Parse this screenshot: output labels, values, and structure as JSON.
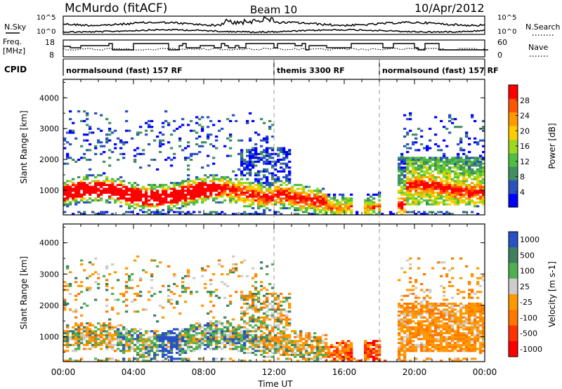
{
  "header": {
    "title": "McMurdo (fitACF)",
    "beam": "Beam 10",
    "date": "10/Apr/2012"
  },
  "top_panels": {
    "nsky_label": "N.Sky",
    "nsearch_label": "N.Search",
    "noise_ticks_left": [
      "10^5",
      "10^0"
    ],
    "noise_ticks_right": [
      "10^5",
      "10^0"
    ],
    "freq_label_line1": "Freq.",
    "freq_label_line2": "[MHz]",
    "freq_ticks": [
      "18",
      "8"
    ],
    "nave_label": "Nave",
    "nave_ticks": [
      "60",
      "0"
    ],
    "cpid_label": "CPID"
  },
  "cpid_segments": [
    {
      "label": "normalsound (fast) 157 RF",
      "start_hour": 0,
      "end_hour": 12
    },
    {
      "label": "themis 3300 RF",
      "start_hour": 12,
      "end_hour": 18
    },
    {
      "label": "normalsound (fast) 157 RF",
      "start_hour": 18,
      "end_hour": 24
    }
  ],
  "colors": {
    "power": [
      "#0000ff",
      "#2a52be",
      "#3f8f5f",
      "#4fbf3f",
      "#a0d820",
      "#ffcc00",
      "#ff9900",
      "#ff5500",
      "#ff0000"
    ],
    "velocity": [
      "#2850c8",
      "#3f7f5f",
      "#4fb04f",
      "#cccccc",
      "#ff9900",
      "#ff7700",
      "#ff3300",
      "#ff0000"
    ]
  },
  "chart_data": [
    {
      "type": "heatmap",
      "title": "Power",
      "xlabel": "Time UT",
      "ylabel": "Slant Range [km]",
      "xticks": [
        "00:00",
        "04:00",
        "08:00",
        "12:00",
        "16:00",
        "20:00",
        "00:00"
      ],
      "ylim": [
        200,
        4600
      ],
      "yticks": [
        1000,
        2000,
        3000,
        4000
      ],
      "colorbar": {
        "label": "Power [dB]",
        "ticks": [
          4,
          8,
          12,
          16,
          20,
          24,
          28
        ],
        "range": [
          0,
          32
        ]
      }
    },
    {
      "type": "heatmap",
      "title": "Velocity",
      "xlabel": "Time UT",
      "ylabel": "Slant Range [km]",
      "xticks": [
        "00:00",
        "04:00",
        "08:00",
        "12:00",
        "16:00",
        "20:00",
        "00:00"
      ],
      "ylim": [
        200,
        4600
      ],
      "yticks": [
        1000,
        2000,
        3000,
        4000
      ],
      "colorbar": {
        "label": "Velocity [m s-1]",
        "ticks": [
          "1000",
          "500",
          "100",
          "25",
          "-25",
          "-100",
          "-500",
          "-1000"
        ]
      }
    }
  ]
}
